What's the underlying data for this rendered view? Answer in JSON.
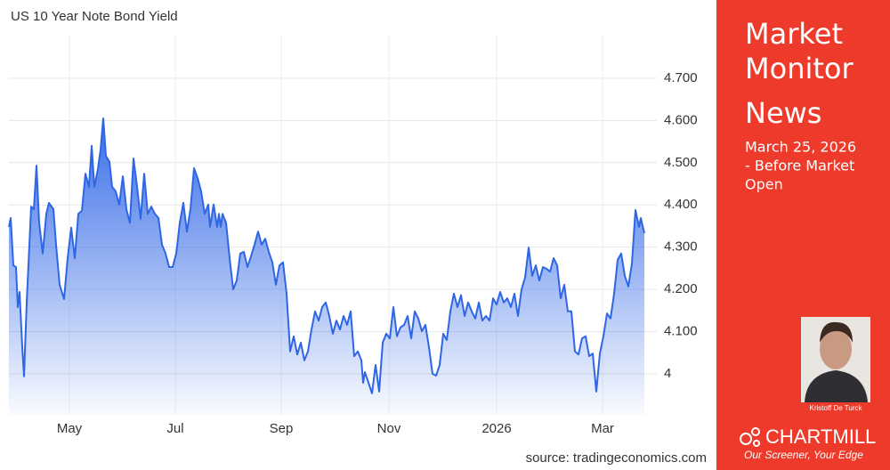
{
  "chart_data": {
    "type": "line",
    "title": "US 10 Year Note Bond Yield",
    "source": "source: tradingeconomics.com",
    "color": "#2f66e6",
    "grid": true,
    "x": [
      0,
      1,
      2.5,
      4,
      5,
      6,
      7.5,
      8.5,
      10,
      12.5,
      14,
      15.5,
      17,
      19,
      21,
      22.5,
      25,
      26.5,
      28.5,
      31,
      33,
      35,
      37,
      39,
      41,
      43,
      45,
      46.5,
      48,
      50,
      51.5,
      53,
      54.5,
      56.5,
      58,
      60,
      62,
      64,
      66,
      68,
      70,
      72,
      74,
      76,
      78,
      80,
      82,
      84,
      86,
      88,
      90,
      92,
      94,
      96,
      98,
      100,
      102,
      104,
      106,
      108,
      110,
      112,
      113,
      115,
      117,
      118,
      119,
      120,
      122,
      124,
      126,
      128,
      130,
      132,
      134,
      136,
      138,
      140,
      142,
      144,
      146,
      148,
      150,
      152,
      154,
      156,
      158,
      160,
      162,
      164,
      166,
      168,
      170,
      172,
      174,
      176,
      178,
      180,
      182,
      184,
      186,
      188,
      190,
      192,
      194,
      196,
      198,
      199,
      200,
      202,
      204,
      206,
      208,
      210,
      212,
      214,
      216,
      218,
      220,
      222,
      224,
      226,
      228,
      230,
      232,
      234,
      236,
      238,
      240,
      242,
      244,
      246,
      248,
      250,
      252,
      254,
      256,
      258,
      260,
      262,
      264,
      266,
      268,
      270,
      272,
      274,
      276,
      278,
      280,
      282,
      284,
      286,
      288,
      290,
      292,
      294,
      296,
      298,
      300,
      302,
      304,
      306,
      308,
      310,
      312,
      314,
      316,
      318,
      320,
      322,
      324,
      326,
      328,
      330,
      332,
      334,
      336,
      338,
      340,
      342,
      344,
      346,
      348,
      350,
      352,
      354,
      355,
      357
    ],
    "values": [
      4.348,
      4.369,
      4.257,
      4.253,
      4.158,
      4.194,
      4.063,
      3.994,
      4.169,
      4.396,
      4.39,
      4.493,
      4.358,
      4.285,
      4.379,
      4.405,
      4.39,
      4.306,
      4.211,
      4.177,
      4.274,
      4.346,
      4.274,
      4.379,
      4.386,
      4.474,
      4.443,
      4.54,
      4.443,
      4.485,
      4.531,
      4.605,
      4.516,
      4.502,
      4.443,
      4.432,
      4.401,
      4.468,
      4.39,
      4.358,
      4.51,
      4.443,
      4.367,
      4.474,
      4.379,
      4.396,
      4.379,
      4.369,
      4.306,
      4.285,
      4.253,
      4.253,
      4.285,
      4.358,
      4.405,
      4.337,
      4.39,
      4.487,
      4.464,
      4.432,
      4.379,
      4.401,
      4.348,
      4.401,
      4.348,
      4.379,
      4.348,
      4.379,
      4.358,
      4.274,
      4.2,
      4.221,
      4.285,
      4.289,
      4.253,
      4.278,
      4.306,
      4.337,
      4.306,
      4.32,
      4.289,
      4.264,
      4.211,
      4.257,
      4.264,
      4.19,
      4.053,
      4.089,
      4.046,
      4.074,
      4.032,
      4.053,
      4.105,
      4.148,
      4.126,
      4.158,
      4.169,
      4.137,
      4.095,
      4.126,
      4.105,
      4.137,
      4.116,
      4.148,
      4.042,
      4.053,
      4.032,
      3.979,
      4.004,
      3.979,
      3.954,
      4.021,
      3.958,
      4.074,
      4.095,
      4.084,
      4.158,
      4.089,
      4.11,
      4.116,
      4.137,
      4.084,
      4.148,
      4.131,
      4.101,
      4.116,
      4.063,
      4.0,
      3.996,
      4.021,
      4.095,
      4.08,
      4.148,
      4.19,
      4.158,
      4.186,
      4.137,
      4.169,
      4.148,
      4.131,
      4.169,
      4.126,
      4.137,
      4.126,
      4.179,
      4.164,
      4.194,
      4.169,
      4.179,
      4.158,
      4.19,
      4.137,
      4.2,
      4.228,
      4.299,
      4.232,
      4.257,
      4.221,
      4.253,
      4.249,
      4.242,
      4.274,
      4.257,
      4.179,
      4.211,
      4.148,
      4.148,
      4.053,
      4.046,
      4.084,
      4.089,
      4.042,
      4.048,
      3.958,
      4.048,
      4.089,
      4.143,
      4.131,
      4.19,
      4.27,
      4.285,
      4.232,
      4.207,
      4.261,
      4.388,
      4.348,
      4.369,
      4.333
    ],
    "xlim": [
      0,
      364
    ],
    "xticks": [
      {
        "value": 34,
        "label": "May"
      },
      {
        "value": 93.5,
        "label": "Jul"
      },
      {
        "value": 153,
        "label": "Sep"
      },
      {
        "value": 213.5,
        "label": "Nov"
      },
      {
        "value": 274,
        "label": "2026"
      },
      {
        "value": 333.5,
        "label": "Mar"
      }
    ],
    "ylim": [
      3.903,
      4.801
    ],
    "yticks": [
      4,
      {
        "value": 4.1,
        "label": "4.100"
      },
      {
        "value": 4.2,
        "label": "4.200"
      },
      {
        "value": 4.3,
        "label": "4.300"
      },
      {
        "value": 4.4,
        "label": "4.400"
      },
      {
        "value": 4.5,
        "label": "4.500"
      },
      {
        "value": 4.6,
        "label": "4.600"
      },
      {
        "value": 4.7,
        "label": "4.700"
      }
    ]
  },
  "panel": {
    "title_lines": [
      "Market",
      "Monitor",
      "News"
    ],
    "date_lines": [
      "March 25, 2026",
      "- Before Market",
      "Open"
    ],
    "author": "Kristoff De Turck",
    "brand": "CHARTMILL",
    "tagline": "Our Screener, Your Edge"
  }
}
